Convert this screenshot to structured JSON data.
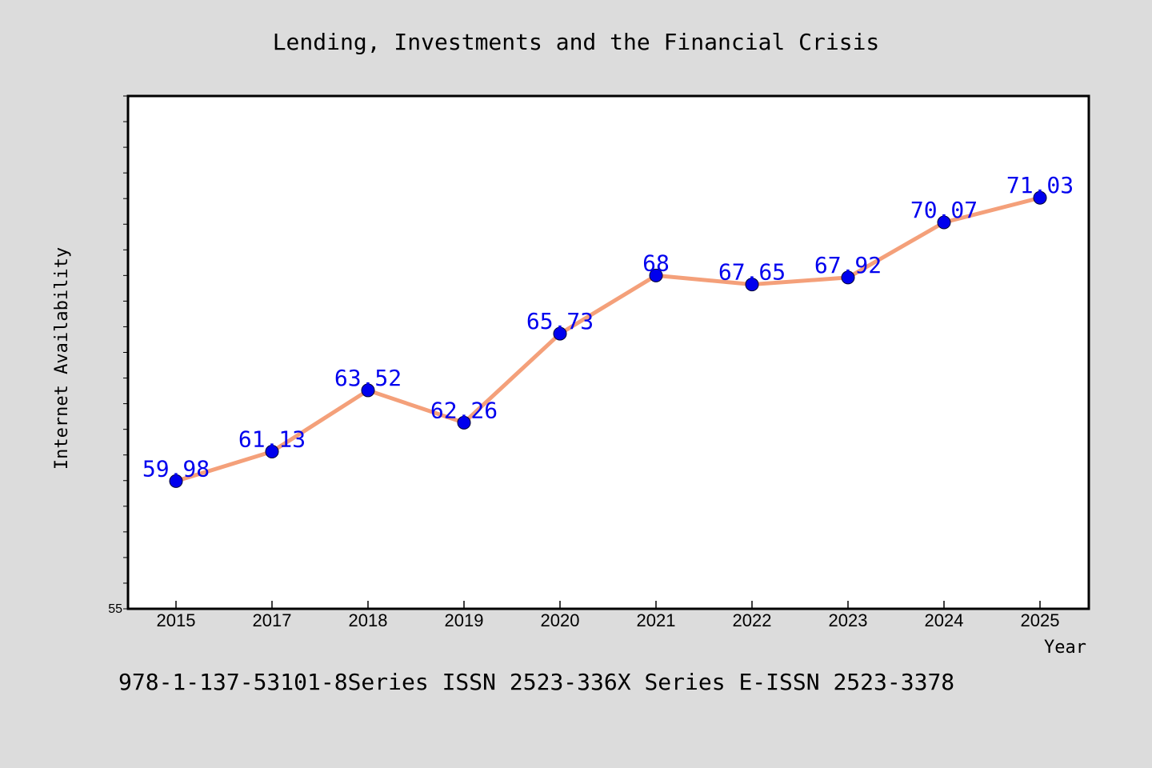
{
  "chart_data": {
    "type": "line",
    "title": "Lending, Investments and the Financial Crisis",
    "xlabel": "Year",
    "ylabel": "Internet Availability",
    "categories": [
      "2015",
      "2017",
      "2018",
      "2019",
      "2020",
      "2021",
      "2022",
      "2023",
      "2024",
      "2025"
    ],
    "series": [
      {
        "values": [
          59.98,
          61.13,
          63.52,
          62.26,
          65.73,
          68,
          67.65,
          67.92,
          70.07,
          71.03
        ],
        "labels": [
          "59.98",
          "61.13",
          "63.52",
          "62.26",
          "65.73",
          "68",
          "67.65",
          "67.92",
          "70.07",
          "71.03"
        ],
        "line_color": "#f4a07a",
        "marker_color": "#0000ee",
        "label_color": "#0000ee"
      }
    ],
    "ylim": [
      55,
      75
    ],
    "y_tick_labels": [
      "55"
    ],
    "grid": false,
    "legend": "none"
  },
  "footer_text": "978-1-137-53101-8Series ISSN 2523-336X Series E-ISSN 2523-3378"
}
